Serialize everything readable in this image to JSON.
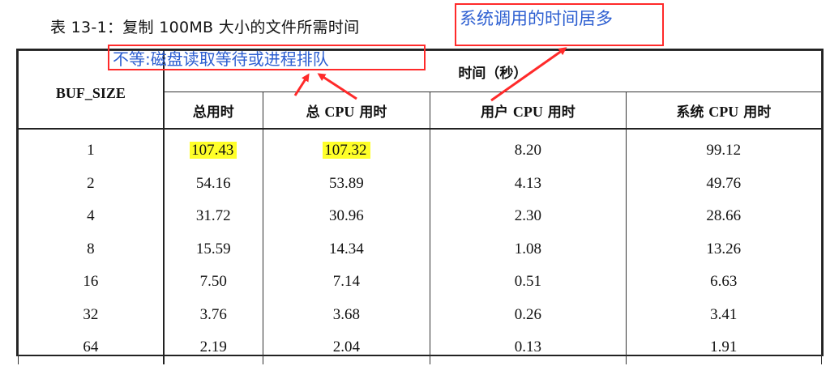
{
  "caption": "表 13-1：复制 100MB 大小的文件所需时间",
  "annotations": {
    "left_note": "不等:磁盘读取等待或进程排队",
    "right_note": "系统调用的时间居多",
    "annotation_color": "#ff2a2a",
    "text_color": "#2d5fd1",
    "highlight_color": "#ffff29"
  },
  "table": {
    "row_header": "BUF_SIZE",
    "group_header": "时间（秒）",
    "columns": [
      {
        "pre": "总用时",
        "latin": "",
        "post": ""
      },
      {
        "pre": "总 ",
        "latin": "CPU",
        "post": " 用时"
      },
      {
        "pre": "用户 ",
        "latin": "CPU",
        "post": " 用时"
      },
      {
        "pre": "系统 ",
        "latin": "CPU",
        "post": " 用时"
      }
    ],
    "rows": [
      [
        "1",
        "107.43",
        "107.32",
        "8.20",
        "99.12"
      ],
      [
        "2",
        "54.16",
        "53.89",
        "4.13",
        "49.76"
      ],
      [
        "4",
        "31.72",
        "30.96",
        "2.30",
        "28.66"
      ],
      [
        "8",
        "15.59",
        "14.34",
        "1.08",
        "13.26"
      ],
      [
        "16",
        "7.50",
        "7.14",
        "0.51",
        "6.63"
      ],
      [
        "32",
        "3.76",
        "3.68",
        "0.26",
        "3.41"
      ],
      [
        "64",
        "2.19",
        "2.04",
        "0.13",
        "1.91"
      ]
    ]
  }
}
